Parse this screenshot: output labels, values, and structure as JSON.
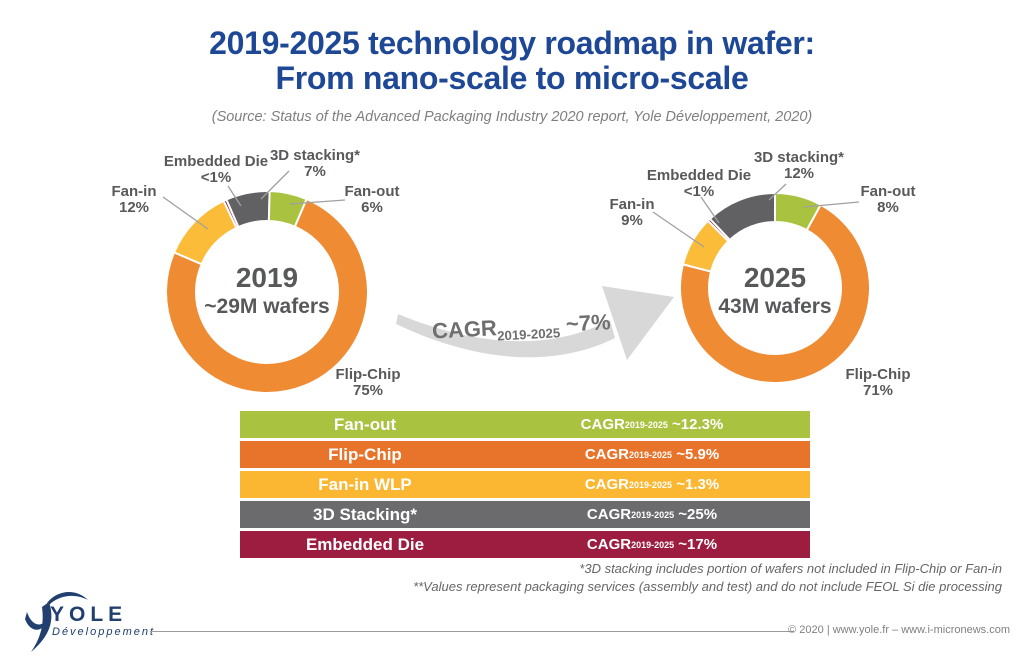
{
  "slide": {
    "title_line1": "2019-2025 technology roadmap in wafer:",
    "title_line2": "From nano-scale to micro-scale",
    "source_note": "(Source: Status of the Advanced Packaging Industry 2020 report, Yole Développement, 2020)",
    "footnote_line1": "*3D stacking includes portion of wafers not included in Flip-Chip or Fan-in",
    "footnote_line2": "**Values represent packaging services (assembly and test) and do not include FEOL Si die processing",
    "footer": {
      "logo_name": "YOLE",
      "logo_subtitle": "Développement",
      "copyright": "© 2020 | www.yole.fr – www.i-micronews.com"
    }
  },
  "colors": {
    "title_blue": "#1e4896",
    "logo_navy": "#21406e",
    "label_gray": "#58595b",
    "arrow_gray": "#d8d8d8",
    "leader_gray": "#a0a0a0",
    "green": "#a9c23f",
    "orange_donut": "#ee8b33",
    "orange_table": "#e8732a",
    "yellow": "#fbbc3a",
    "dark_gray": "#616163",
    "maroon": "#9d1d41"
  },
  "chart_data": {
    "type": "pie",
    "subtype": "donut-pair",
    "donuts": [
      {
        "id": "2019",
        "center_year": "2019",
        "center_volume": "~29M wafers",
        "start_angle_deg": -25.5,
        "segments": [
          {
            "name": "Embedded Die",
            "display": "<1%",
            "value": 0.5,
            "color": "#9d1d41"
          },
          {
            "name": "3D stacking*",
            "display": "7%",
            "value": 7,
            "color": "#616163"
          },
          {
            "name": "Fan-out",
            "display": "6%",
            "value": 6,
            "color": "#a9c23f"
          },
          {
            "name": "Flip-Chip",
            "display": "75%",
            "value": 75,
            "color": "#ee8b33"
          },
          {
            "name": "Fan-in",
            "display": "12%",
            "value": 11.5,
            "color": "#fbbc3a"
          }
        ]
      },
      {
        "id": "2025",
        "center_year": "2025",
        "center_volume": "43M wafers",
        "start_angle_deg": -45,
        "segments": [
          {
            "name": "Embedded Die",
            "display": "<1%",
            "value": 0.5,
            "color": "#9d1d41"
          },
          {
            "name": "3D stacking*",
            "display": "12%",
            "value": 12,
            "color": "#616163"
          },
          {
            "name": "Fan-out",
            "display": "8%",
            "value": 8,
            "color": "#a9c23f"
          },
          {
            "name": "Flip-Chip",
            "display": "71%",
            "value": 71,
            "color": "#ee8b33"
          },
          {
            "name": "Fan-in",
            "display": "9%",
            "value": 8.5,
            "color": "#fbbc3a"
          }
        ]
      }
    ],
    "growth_arrow": {
      "prefix": "CAGR",
      "subscript": "2019-2025",
      "value": "~7%"
    },
    "cagr_table": {
      "rows": [
        {
          "label": "Fan-out",
          "prefix": "CAGR",
          "subscript": "2019-2025",
          "value": "~12.3%",
          "color": "#a9c23f"
        },
        {
          "label": "Flip-Chip",
          "prefix": "CAGR",
          "subscript": "2019-2025",
          "value": "~5.9%",
          "color": "#e8732a"
        },
        {
          "label": "Fan-in WLP",
          "prefix": "CAGR",
          "subscript": "2019-2025",
          "value": "~1.3%",
          "color": "#fbb732"
        },
        {
          "label": "3D Stacking*",
          "prefix": "CAGR",
          "subscript": "2019-2025",
          "value": "~25%",
          "color": "#6b6b6e"
        },
        {
          "label": "Embedded Die",
          "prefix": "CAGR",
          "subscript": "2019-2025",
          "value": "~17%",
          "color": "#9d1d41"
        }
      ]
    }
  }
}
